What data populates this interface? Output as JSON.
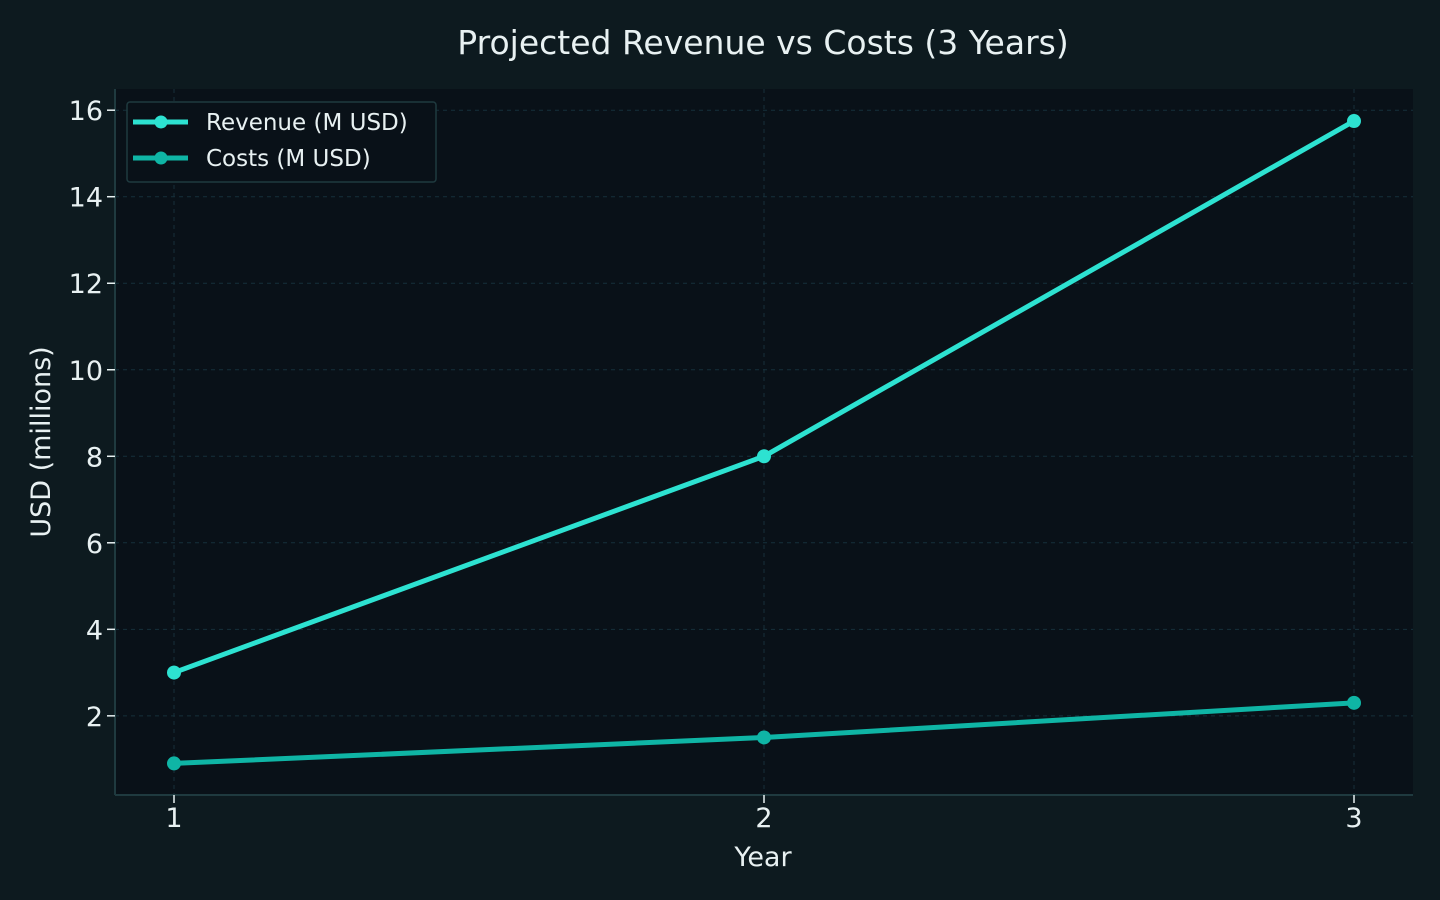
{
  "chart_data": {
    "type": "line",
    "title": "Projected Revenue vs Costs (3 Years)",
    "xlabel": "Year",
    "ylabel": "USD (millions)",
    "x": [
      1,
      2,
      3
    ],
    "x_tick_labels": [
      "1",
      "2",
      "3"
    ],
    "y_ticks": [
      2,
      4,
      6,
      8,
      10,
      12,
      14,
      16
    ],
    "y_tick_labels": [
      "2",
      "4",
      "6",
      "8",
      "10",
      "12",
      "14",
      "16"
    ],
    "xlim": [
      0.9,
      3.1
    ],
    "ylim": [
      0.17,
      16.49
    ],
    "grid": true,
    "legend_position": "top-left",
    "series": [
      {
        "name": "Revenue (M USD)",
        "values": [
          3.0,
          8.0,
          15.75
        ],
        "color": "#2de2d1"
      },
      {
        "name": "Costs (M USD)",
        "values": [
          0.9,
          1.5,
          2.3
        ],
        "color": "#0fb5a5"
      }
    ]
  },
  "colors": {
    "background": "#0d1a1f",
    "plot_background": "#091118",
    "axis": "#1f3a3f",
    "grid": "#16303a",
    "text": "#e8f1f2"
  }
}
